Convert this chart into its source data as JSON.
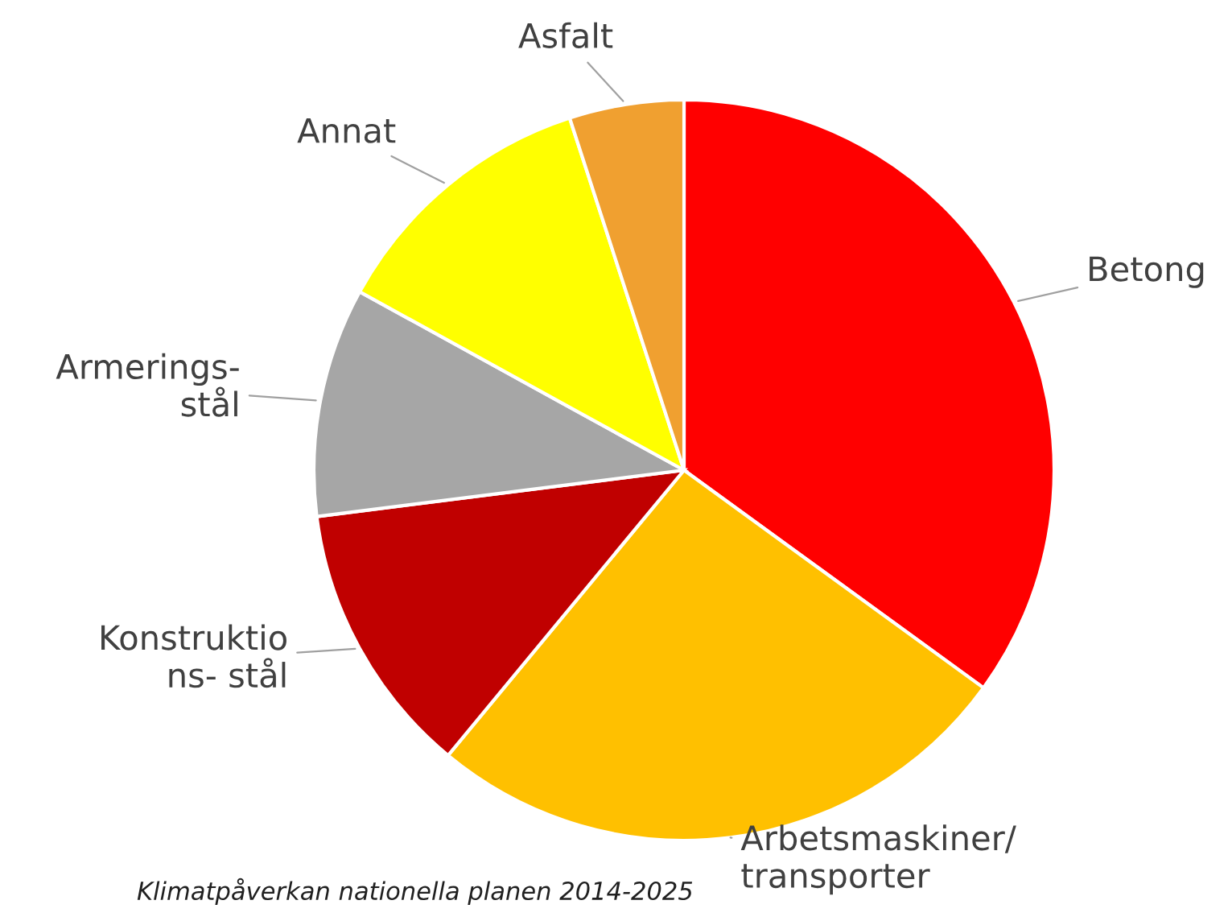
{
  "chart_data": {
    "type": "pie",
    "categories": [
      "Betong",
      "Arbetsmaskiner/\ntransporter",
      "Konstruktio\nns- stål",
      "Armerings-\nstål",
      "Annat",
      "Asfalt"
    ],
    "values": [
      35,
      26,
      12,
      10,
      12,
      5
    ],
    "colors": [
      "#ff0000",
      "#ffc000",
      "#c00000",
      "#a6a6a6",
      "#ffff00",
      "#f0a030"
    ],
    "annotations": [
      "Klimatpåverkan nationella planen 2014-2025"
    ]
  }
}
